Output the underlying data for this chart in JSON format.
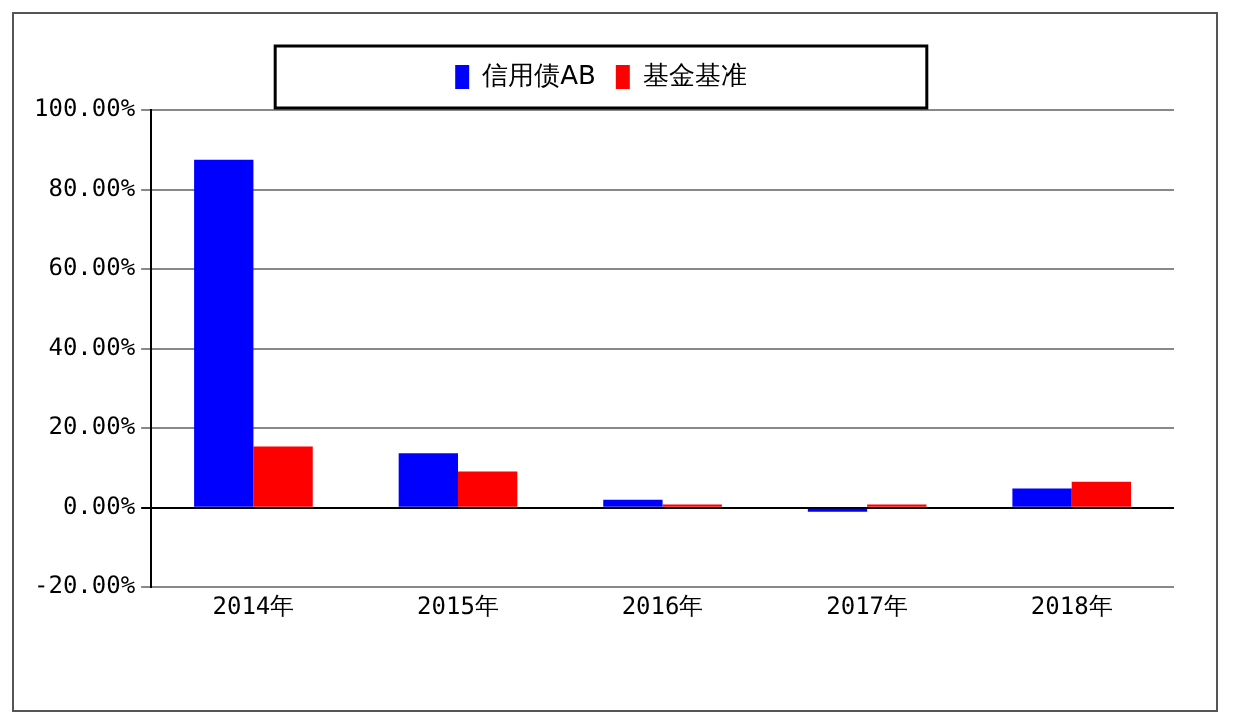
{
  "chart_data": {
    "type": "bar",
    "categories": [
      "2014年",
      "2015年",
      "2016年",
      "2017年",
      "2018年"
    ],
    "series": [
      {
        "name": "信用债AB",
        "color": "#0000ff",
        "values": [
          87.5,
          13.7,
          2.0,
          -1.0,
          4.8
        ]
      },
      {
        "name": "基金基准",
        "color": "#ff0000",
        "values": [
          15.4,
          9.1,
          0.8,
          0.8,
          6.5
        ]
      }
    ],
    "ylim": [
      -20,
      100
    ],
    "yticks": [
      {
        "value": -20,
        "label": "-20.00%"
      },
      {
        "value": 0,
        "label": "0.00%"
      },
      {
        "value": 20,
        "label": "20.00%"
      },
      {
        "value": 40,
        "label": "40.00%"
      },
      {
        "value": 60,
        "label": "60.00%"
      },
      {
        "value": 80,
        "label": "80.00%"
      },
      {
        "value": 100,
        "label": "100.00%"
      }
    ],
    "grid": "y",
    "legend": "top"
  }
}
